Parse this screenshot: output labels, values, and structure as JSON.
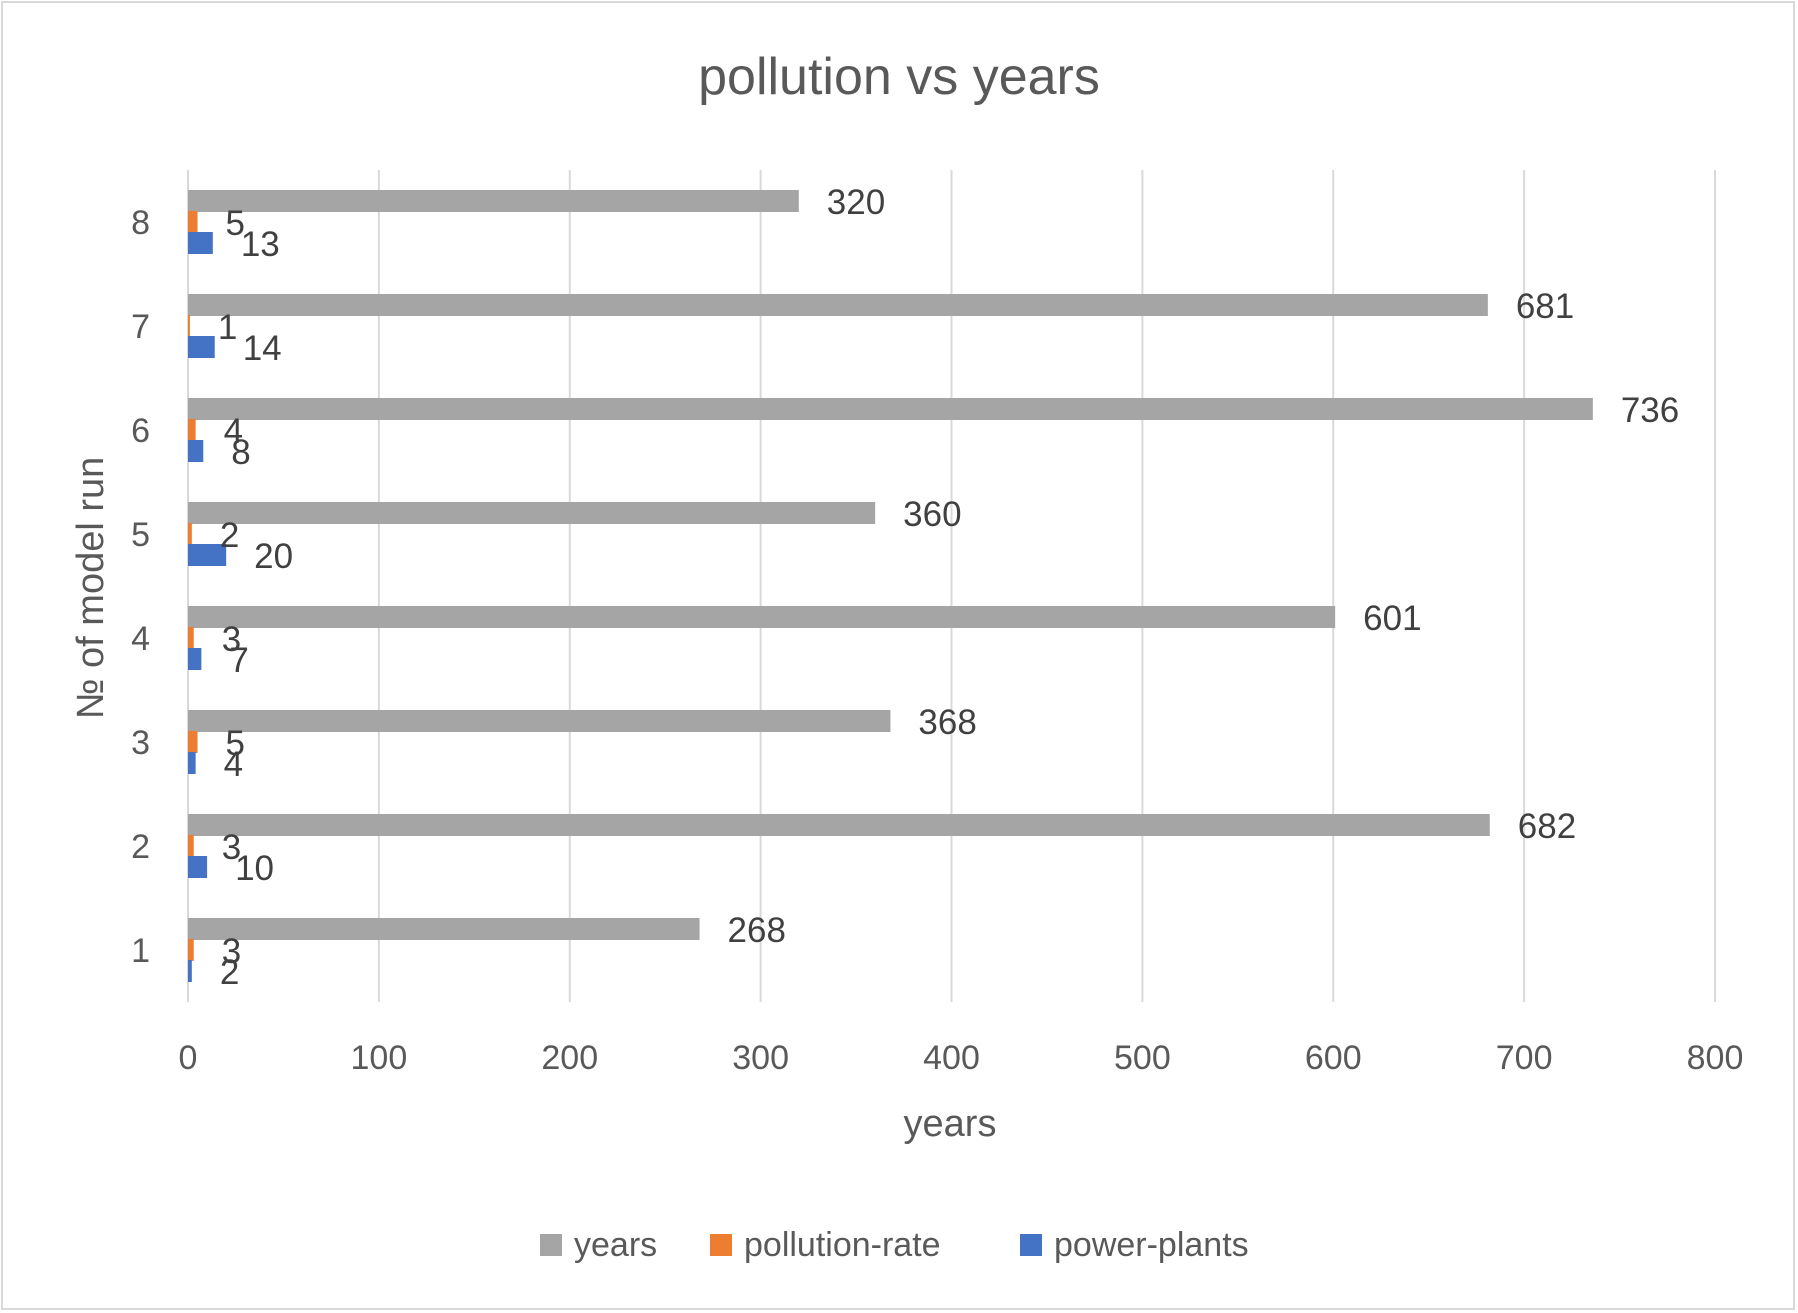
{
  "chart_data": {
    "type": "bar",
    "orientation": "horizontal",
    "title": "pollution vs years",
    "xlabel": "years",
    "ylabel": "№ of model run",
    "categories": [
      "1",
      "2",
      "3",
      "4",
      "5",
      "6",
      "7",
      "8"
    ],
    "xlim": [
      0,
      800
    ],
    "xticks": [
      0,
      100,
      200,
      300,
      400,
      500,
      600,
      700,
      800
    ],
    "grid": true,
    "legend_position": "bottom",
    "series": [
      {
        "name": "years",
        "color": "#a5a5a5",
        "values": [
          268,
          682,
          368,
          601,
          360,
          736,
          681,
          320
        ]
      },
      {
        "name": "pollution-rate",
        "color": "#ed7d31",
        "values": [
          3,
          3,
          5,
          3,
          2,
          4,
          1,
          5
        ]
      },
      {
        "name": "power-plants",
        "color": "#4472c4",
        "values": [
          2,
          10,
          4,
          7,
          20,
          8,
          14,
          13
        ]
      }
    ]
  }
}
